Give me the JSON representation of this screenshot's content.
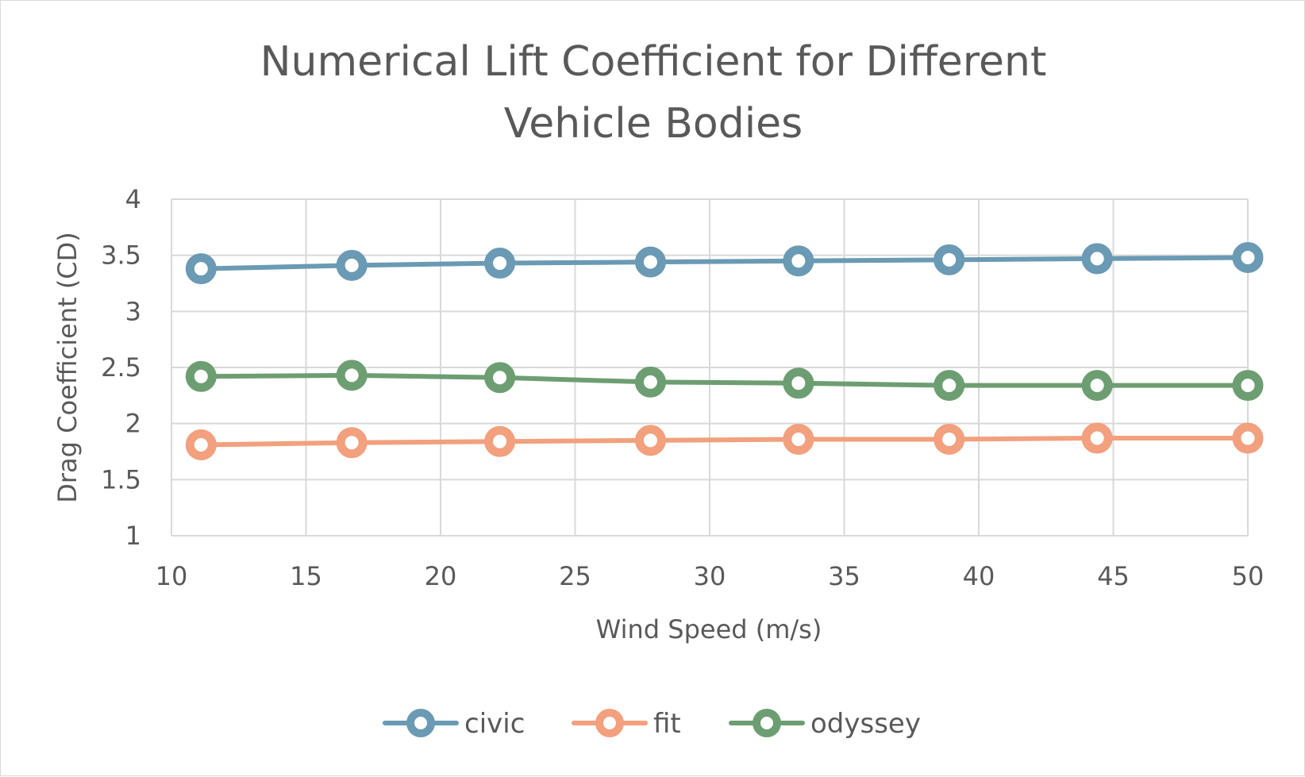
{
  "chart_data": {
    "type": "line",
    "title_lines": [
      "Numerical Lift Coefficient for Different",
      "Vehicle Bodies"
    ],
    "xlabel": "Wind Speed (m/s)",
    "ylabel": "Drag Coefficient (CD)",
    "xlim": [
      10,
      50
    ],
    "ylim": [
      1,
      4
    ],
    "x_ticks": [
      10,
      15,
      20,
      25,
      30,
      35,
      40,
      45,
      50
    ],
    "y_ticks": [
      1,
      1.5,
      2,
      2.5,
      3,
      3.5,
      4
    ],
    "grid": true,
    "legend_position": "bottom",
    "x": [
      11.1,
      16.7,
      22.2,
      27.8,
      33.3,
      38.9,
      44.4,
      50
    ],
    "series": [
      {
        "name": "civic",
        "color": "#6a9ab4",
        "values": [
          3.38,
          3.41,
          3.43,
          3.44,
          3.45,
          3.46,
          3.47,
          3.48
        ]
      },
      {
        "name": "fit",
        "color": "#f2a07d",
        "values": [
          1.81,
          1.83,
          1.84,
          1.85,
          1.86,
          1.86,
          1.87,
          1.87
        ]
      },
      {
        "name": "odyssey",
        "color": "#6d9e72",
        "values": [
          2.42,
          2.43,
          2.41,
          2.37,
          2.36,
          2.34,
          2.34,
          2.34
        ]
      }
    ]
  }
}
